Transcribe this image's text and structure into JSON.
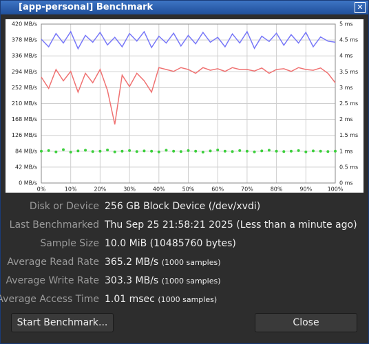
{
  "window": {
    "title": "[app-personal] Benchmark"
  },
  "chart_data": {
    "type": "line",
    "x": [
      0,
      2.5,
      5,
      7.5,
      10,
      12.5,
      15,
      17.5,
      20,
      22.5,
      25,
      27.5,
      30,
      32.5,
      35,
      37.5,
      40,
      42.5,
      45,
      47.5,
      50,
      52.5,
      55,
      57.5,
      60,
      62.5,
      65,
      67.5,
      70,
      72.5,
      75,
      77.5,
      80,
      82.5,
      85,
      87.5,
      90,
      92.5,
      95,
      97.5,
      100
    ],
    "xlim": [
      0,
      100
    ],
    "xticks": [
      {
        "value": 0,
        "label": "0%"
      },
      {
        "value": 10,
        "label": "10%"
      },
      {
        "value": 20,
        "label": "20%"
      },
      {
        "value": 30,
        "label": "30%"
      },
      {
        "value": 40,
        "label": "40%"
      },
      {
        "value": 50,
        "label": "50%"
      },
      {
        "value": 60,
        "label": "60%"
      },
      {
        "value": 70,
        "label": "70%"
      },
      {
        "value": 80,
        "label": "80%"
      },
      {
        "value": 90,
        "label": "90%"
      },
      {
        "value": 100,
        "label": "100%"
      }
    ],
    "ylim": [
      0,
      420
    ],
    "yticks": [
      {
        "value": 0,
        "label": "0 MB/s"
      },
      {
        "value": 42,
        "label": "42 MB/s"
      },
      {
        "value": 84,
        "label": "84 MB/s"
      },
      {
        "value": 126,
        "label": "126 MB/s"
      },
      {
        "value": 168,
        "label": "168 MB/s"
      },
      {
        "value": 210,
        "label": "210 MB/s"
      },
      {
        "value": 252,
        "label": "252 MB/s"
      },
      {
        "value": 294,
        "label": "294 MB/s"
      },
      {
        "value": 336,
        "label": "336 MB/s"
      },
      {
        "value": 378,
        "label": "378 MB/s"
      },
      {
        "value": 420,
        "label": "420 MB/s"
      }
    ],
    "y2lim": [
      0,
      5
    ],
    "y2ticks": [
      {
        "value": 0,
        "label": "0 ms"
      },
      {
        "value": 0.5,
        "label": "0.5 ms"
      },
      {
        "value": 1,
        "label": "1 ms"
      },
      {
        "value": 1.5,
        "label": "1.5 ms"
      },
      {
        "value": 2,
        "label": "2 ms"
      },
      {
        "value": 2.5,
        "label": "2.5 ms"
      },
      {
        "value": 3,
        "label": "3 ms"
      },
      {
        "value": 3.5,
        "label": "3.5 ms"
      },
      {
        "value": 4,
        "label": "4 ms"
      },
      {
        "value": 4.5,
        "label": "4.5 ms"
      },
      {
        "value": 5,
        "label": "5 ms"
      }
    ],
    "grid": true,
    "series": [
      {
        "type": "line",
        "color": "#7878f8",
        "values": [
          380,
          360,
          395,
          370,
          400,
          355,
          390,
          372,
          398,
          365,
          385,
          360,
          395,
          375,
          400,
          358,
          388,
          370,
          396,
          362,
          390,
          368,
          398,
          372,
          385,
          360,
          394,
          370,
          400,
          356,
          388,
          374,
          396,
          364,
          392,
          370,
          398,
          360,
          386,
          375,
          372
        ]
      },
      {
        "type": "line",
        "color": "#f07272",
        "values": [
          280,
          250,
          300,
          270,
          295,
          240,
          290,
          265,
          300,
          245,
          155,
          285,
          255,
          290,
          270,
          240,
          305,
          300,
          295,
          305,
          300,
          290,
          305,
          298,
          302,
          295,
          305,
          300,
          300,
          296,
          304,
          290,
          300,
          302,
          295,
          305,
          300,
          298,
          304,
          290,
          265
        ]
      },
      {
        "type": "scatter",
        "axis": "y2",
        "color": "#3ccf3c",
        "values": [
          1.0,
          1.02,
          0.98,
          1.05,
          0.97,
          1.01,
          1.03,
          0.99,
          1.0,
          1.04,
          0.98,
          1.0,
          1.02,
          0.99,
          1.01,
          1.0,
          0.98,
          1.03,
          1.0,
          0.99,
          1.02,
          1.0,
          0.97,
          1.01,
          1.04,
          1.0,
          0.99,
          1.02,
          1.0,
          0.98,
          1.01,
          1.03,
          1.0,
          0.99,
          1.0,
          1.02,
          0.98,
          1.01,
          1.0,
          0.99,
          1.0
        ]
      }
    ]
  },
  "info": [
    {
      "label": "Disk or Device",
      "value": "256 GB Block Device (/dev/xvdi)"
    },
    {
      "label": "Last Benchmarked",
      "value": "Thu Sep 25 21:58:21 2025 (Less than a minute ago)"
    },
    {
      "label": "Sample Size",
      "value": "10.0 MiB (10485760 bytes)"
    },
    {
      "label": "Average Read Rate",
      "value": "365.2 MB/s",
      "note": "(1000 samples)"
    },
    {
      "label": "Average Write Rate",
      "value": "303.3 MB/s",
      "note": "(1000 samples)"
    },
    {
      "label": "Average Access Time",
      "value": "1.01 msec",
      "note": "(1000 samples)"
    }
  ],
  "buttons": {
    "start": "Start Benchmark...",
    "close": "Close"
  }
}
